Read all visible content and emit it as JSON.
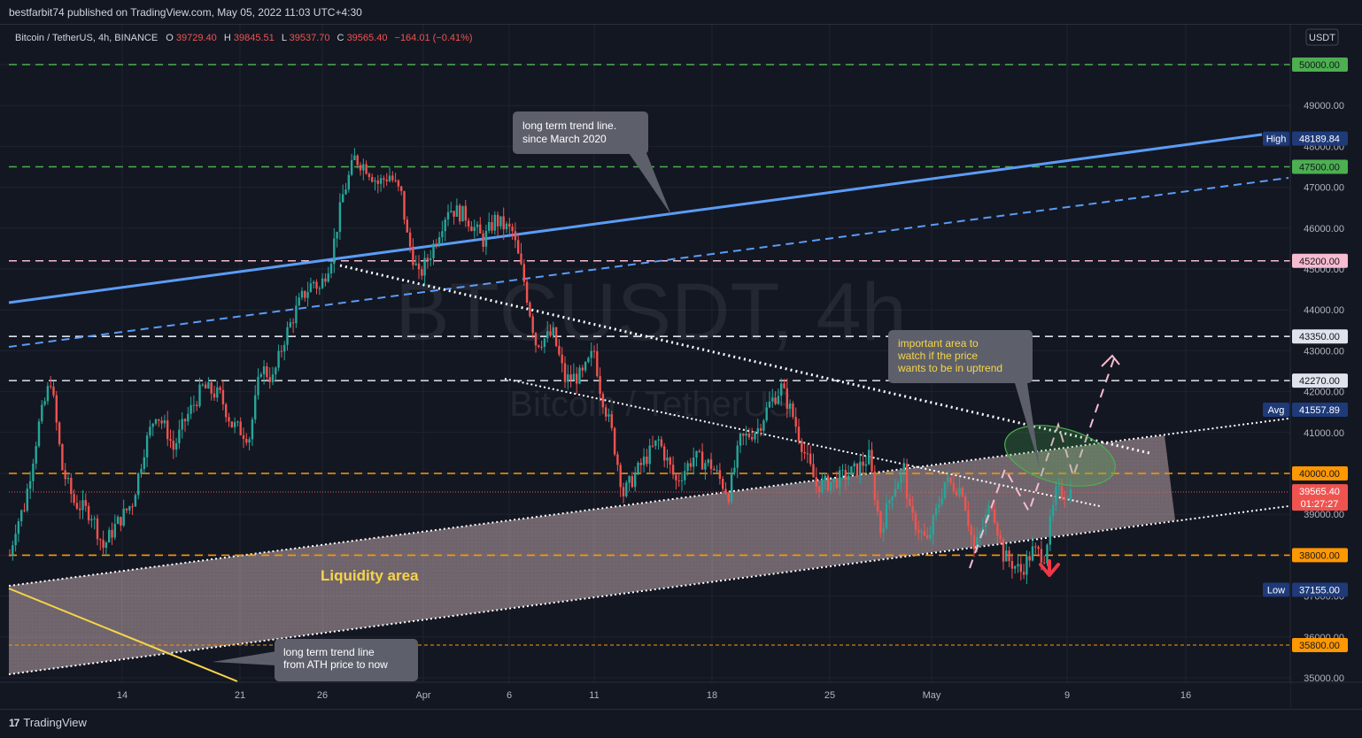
{
  "header": {
    "published": "bestfarbit74 published on TradingView.com, May 05, 2022 11:03 UTC+4:30"
  },
  "legend": {
    "symbol": "Bitcoin / TetherUS, 4h, BINANCE",
    "o_label": "O",
    "o": "39729.40",
    "h_label": "H",
    "h": "39845.51",
    "l_label": "L",
    "l": "39537.70",
    "c_label": "C",
    "c": "39565.40",
    "change": "−164.01 (−0.41%)"
  },
  "watermark": {
    "main": "BTCUSDT, 4h",
    "sub": "Bitcoin / TetherUS"
  },
  "currency_button": "USDT",
  "footer": {
    "brand": "TradingView",
    "logo_icon": "tradingview-logo-icon"
  },
  "colors": {
    "background": "#131722",
    "up": "#26a69a",
    "down": "#ef5350",
    "trendline": "#5b9cf6",
    "green_level": "#4caf50",
    "orange_level": "#ff9800",
    "pink_level": "#f8bbd0",
    "yellow_line": "#f7d44a",
    "band_fill": "#efcfd0"
  },
  "chart_data": {
    "type": "candlestick",
    "interval": "4h",
    "ylim": [
      34900,
      51000
    ],
    "x_tick_labels": [
      "14",
      "21",
      "26",
      "Apr",
      "6",
      "11",
      "18",
      "25",
      "May",
      "9",
      "16"
    ],
    "y_tick_labels": [
      "35000.00",
      "36000.00",
      "37000.00",
      "38000.00",
      "39000.00",
      "40000.00",
      "41000.00",
      "42000.00",
      "43000.00",
      "44000.00",
      "45000.00",
      "46000.00",
      "47000.00",
      "48000.00",
      "49000.00",
      "50000.00"
    ],
    "price_path": [
      [
        0,
        38000
      ],
      [
        2,
        38700
      ],
      [
        5,
        39200
      ],
      [
        10,
        41200
      ],
      [
        14,
        42300
      ],
      [
        18,
        40100
      ],
      [
        22,
        39300
      ],
      [
        28,
        39000
      ],
      [
        32,
        38200
      ],
      [
        36,
        38700
      ],
      [
        42,
        39300
      ],
      [
        46,
        40600
      ],
      [
        50,
        41500
      ],
      [
        54,
        41000
      ],
      [
        56,
        40600
      ],
      [
        60,
        41300
      ],
      [
        66,
        42100
      ],
      [
        72,
        41900
      ],
      [
        76,
        41200
      ],
      [
        82,
        40900
      ],
      [
        86,
        42600
      ],
      [
        90,
        42300
      ],
      [
        94,
        43300
      ],
      [
        98,
        44000
      ],
      [
        100,
        44300
      ],
      [
        104,
        44700
      ],
      [
        106,
        44500
      ],
      [
        110,
        45300
      ],
      [
        114,
        46800
      ],
      [
        118,
        47700
      ],
      [
        122,
        47500
      ],
      [
        126,
        47100
      ],
      [
        130,
        47300
      ],
      [
        134,
        46800
      ],
      [
        136,
        45800
      ],
      [
        140,
        44800
      ],
      [
        144,
        45400
      ],
      [
        150,
        46500
      ],
      [
        156,
        46300
      ],
      [
        162,
        45700
      ],
      [
        166,
        46200
      ],
      [
        172,
        45900
      ],
      [
        176,
        44700
      ],
      [
        180,
        43200
      ],
      [
        186,
        43400
      ],
      [
        190,
        42300
      ],
      [
        196,
        42400
      ],
      [
        200,
        43000
      ],
      [
        202,
        42100
      ],
      [
        206,
        41000
      ],
      [
        210,
        39500
      ],
      [
        216,
        40200
      ],
      [
        222,
        40800
      ],
      [
        228,
        39800
      ],
      [
        234,
        40400
      ],
      [
        240,
        40200
      ],
      [
        246,
        39500
      ],
      [
        250,
        40800
      ],
      [
        256,
        41100
      ],
      [
        260,
        41700
      ],
      [
        264,
        42100
      ],
      [
        268,
        41400
      ],
      [
        272,
        40500
      ],
      [
        276,
        39700
      ],
      [
        282,
        39800
      ],
      [
        290,
        40100
      ],
      [
        294,
        40400
      ],
      [
        298,
        38600
      ],
      [
        302,
        39600
      ],
      [
        306,
        40100
      ],
      [
        308,
        39000
      ],
      [
        314,
        38300
      ],
      [
        320,
        39800
      ],
      [
        326,
        39600
      ],
      [
        330,
        38100
      ],
      [
        336,
        39300
      ],
      [
        340,
        38000
      ],
      [
        346,
        37600
      ],
      [
        350,
        38100
      ],
      [
        354,
        38000
      ],
      [
        358,
        39500
      ],
      [
        363,
        39565
      ]
    ]
  },
  "levels": [
    {
      "label": "50000.00",
      "price": 50000,
      "color": "#4caf50",
      "style": "dashed",
      "text_color": "#131722"
    },
    {
      "label": "47500.00",
      "price": 47500,
      "color": "#4caf50",
      "style": "dashed",
      "text_color": "#131722"
    },
    {
      "label": "45200.00",
      "price": 45200,
      "color": "#f8bbd0",
      "style": "dashed",
      "text_color": "#131722"
    },
    {
      "label": "43350.00",
      "price": 43350,
      "color": "#e0e3eb",
      "style": "dashed",
      "text_color": "#131722"
    },
    {
      "label": "42270.00",
      "price": 42270,
      "color": "#e0e3eb",
      "style": "dashed",
      "text_color": "#131722"
    },
    {
      "label": "40000.00",
      "price": 40000,
      "color": "#ff9800",
      "style": "dashed",
      "text_color": "#131722"
    },
    {
      "label": "38000.00",
      "price": 38000,
      "color": "#ff9800",
      "style": "dashed",
      "text_color": "#131722"
    },
    {
      "label": "35800.00",
      "price": 35800,
      "color": "#ff9800",
      "style": "dashed-thin",
      "text_color": "#131722"
    }
  ],
  "axis_badges": [
    {
      "tag": "High",
      "label": "48189.84",
      "price": 48189.84,
      "color": "#1e3a78"
    },
    {
      "tag": "Avg",
      "label": "41557.89",
      "price": 41557.89,
      "color": "#1e3a78"
    },
    {
      "tag": "Low",
      "label": "37155.00",
      "price": 37155,
      "color": "#1e3a78"
    },
    {
      "tag": "",
      "label": "39565.40",
      "sub": "01:27:27",
      "price": 39565.4,
      "color": "#ef5350"
    }
  ],
  "annotations": {
    "trend_note": [
      "long term trend line.",
      "since March 2020"
    ],
    "important_note": [
      "important area to",
      "watch if the price",
      "wants to be in uptrend"
    ],
    "ath_note": [
      "long term trend line",
      "from ATH price to now"
    ],
    "liquidity_label": "Liquidity area"
  }
}
